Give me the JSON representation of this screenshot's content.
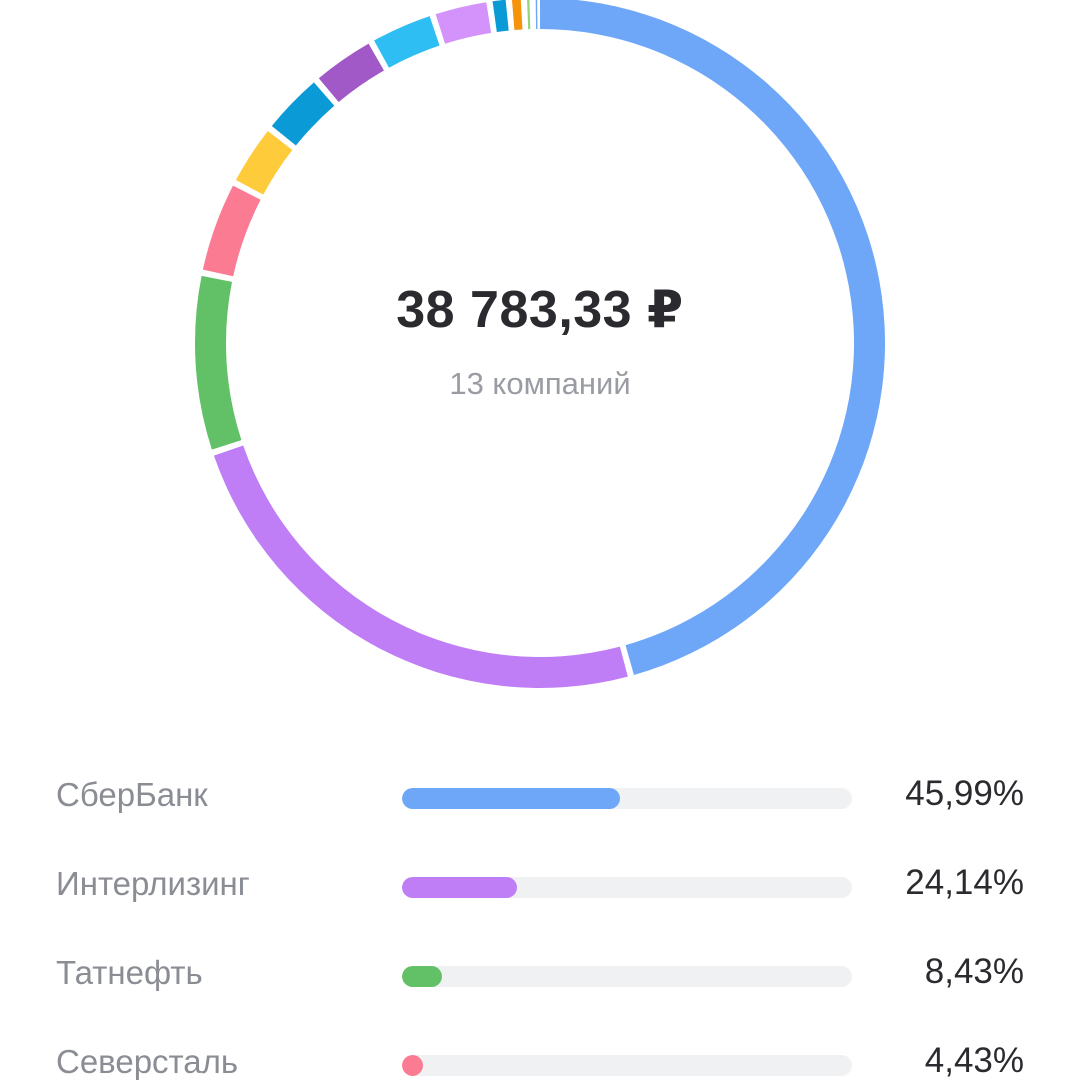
{
  "summary": {
    "total": "38 783,33 ₽",
    "count_label": "13 компаний"
  },
  "chart_data": {
    "type": "pie",
    "style": "donut",
    "start_angle_deg": 0,
    "direction": "clockwise",
    "slices": [
      {
        "value": 45.99,
        "color": "#6ea7f7"
      },
      {
        "value": 24.14,
        "color": "#c07ef6"
      },
      {
        "value": 8.43,
        "color": "#62c166"
      },
      {
        "value": 4.43,
        "color": "#fb7b93"
      },
      {
        "value": 3.0,
        "color": "#fecb3b"
      },
      {
        "value": 3.1,
        "color": "#0a9bd6"
      },
      {
        "value": 3.1,
        "color": "#a059c6"
      },
      {
        "value": 3.1,
        "color": "#2fbef3"
      },
      {
        "value": 2.7,
        "color": "#d393fb"
      },
      {
        "value": 0.9,
        "color": "#0a9bd6"
      },
      {
        "value": 0.7,
        "color": "#f7930a"
      },
      {
        "value": 0.4,
        "color": "#93d579"
      },
      {
        "value": 0.2,
        "color": "#6ea7f7"
      }
    ]
  },
  "rows": [
    {
      "name": "СберБанк",
      "pct_label": "45,99%",
      "value": 45.99,
      "color": "#6ea7f7"
    },
    {
      "name": "Интерлизинг",
      "pct_label": "24,14%",
      "value": 24.14,
      "color": "#c07ef6"
    },
    {
      "name": "Татнефть",
      "pct_label": "8,43%",
      "value": 8.43,
      "color": "#62c166"
    },
    {
      "name": "Северсталь",
      "pct_label": "4,43%",
      "value": 4.43,
      "color": "#fb7b93"
    }
  ]
}
